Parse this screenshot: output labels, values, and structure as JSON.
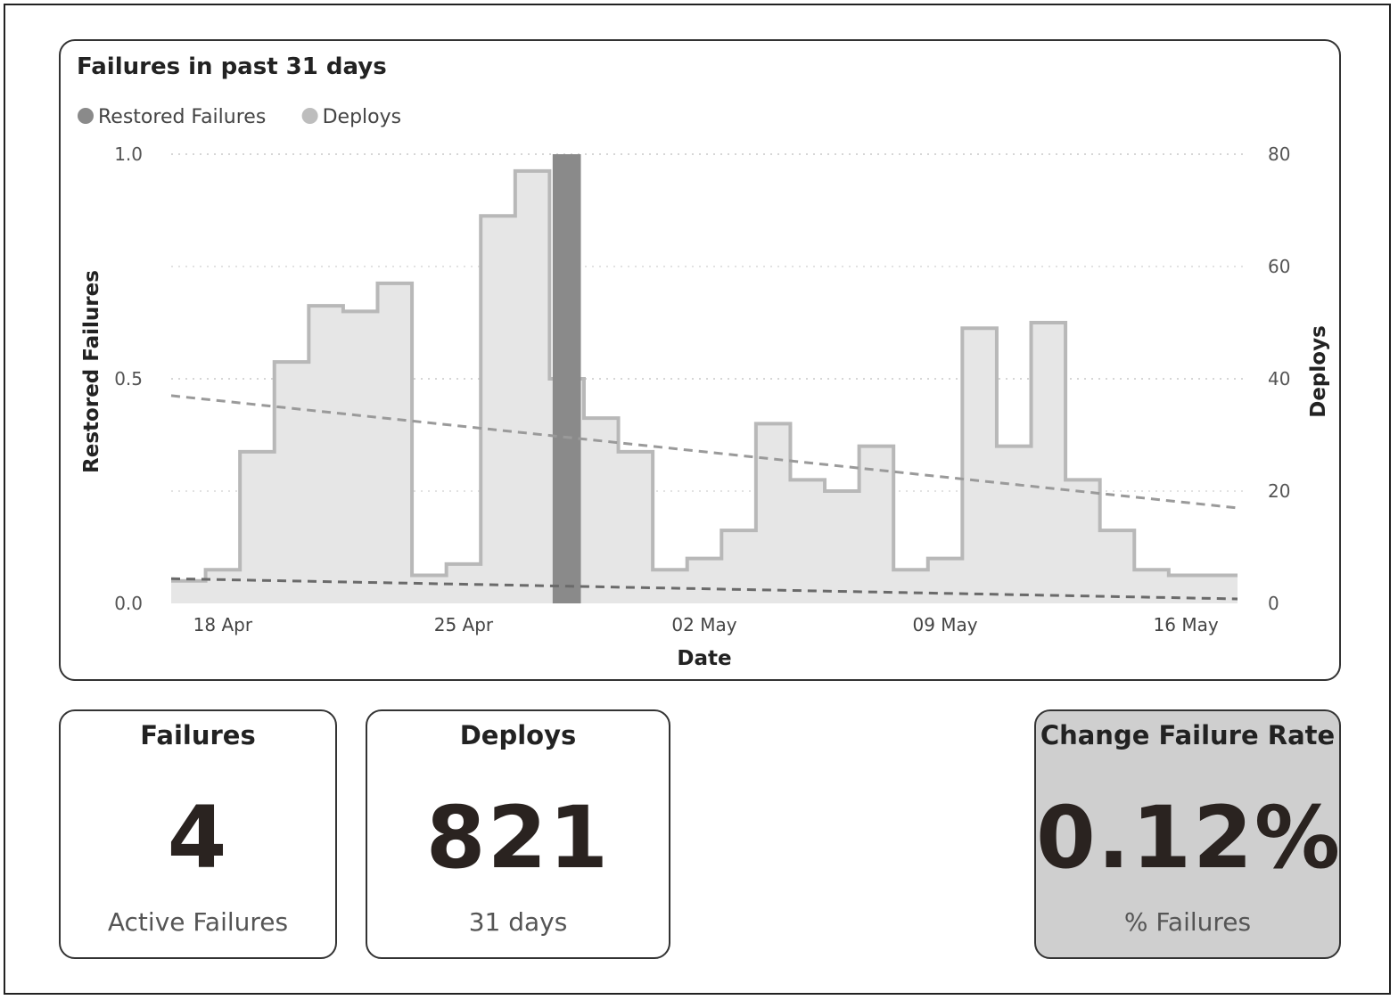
{
  "chart_data": {
    "type": "bar",
    "title": "Failures in past 31 days",
    "legend": [
      {
        "name": "Restored Failures",
        "color": "#8a8a8a"
      },
      {
        "name": "Deploys",
        "color": "#bdbdbd"
      }
    ],
    "legend_position": "top-left",
    "xlabel": "Date",
    "ylabel_left": "Restored Failures",
    "ylabel_right": "Deploys",
    "x_ticks": [
      "18 Apr",
      "25 Apr",
      "02 May",
      "09 May",
      "16 May"
    ],
    "y_left_ticks": [
      "0.0",
      "0.5",
      "1.0"
    ],
    "y_right_ticks": [
      "0",
      "20",
      "40",
      "60",
      "80"
    ],
    "y_left_range": [
      0,
      1
    ],
    "y_right_range": [
      0,
      80
    ],
    "grid": "dotted-horizontal",
    "dates": [
      "17 Apr",
      "18 Apr",
      "19 Apr",
      "20 Apr",
      "21 Apr",
      "22 Apr",
      "23 Apr",
      "24 Apr",
      "25 Apr",
      "26 Apr",
      "27 Apr",
      "28 Apr",
      "29 Apr",
      "30 Apr",
      "01 May",
      "02 May",
      "03 May",
      "04 May",
      "05 May",
      "06 May",
      "07 May",
      "08 May",
      "09 May",
      "10 May",
      "11 May",
      "12 May",
      "13 May",
      "14 May",
      "15 May",
      "16 May",
      "17 May"
    ],
    "series": [
      {
        "name": "Deploys",
        "type": "step-area",
        "axis": "right",
        "values": [
          4,
          6,
          27,
          43,
          53,
          52,
          57,
          5,
          7,
          69,
          77,
          40,
          33,
          27,
          6,
          8,
          13,
          32,
          22,
          20,
          28,
          6,
          8,
          49,
          28,
          50,
          22,
          13,
          6,
          5,
          5
        ]
      },
      {
        "name": "Restored Failures",
        "type": "bar",
        "axis": "left",
        "values": [
          0,
          0,
          0,
          0,
          0,
          0,
          0,
          0,
          0,
          0,
          0,
          1,
          0,
          0,
          0,
          0,
          0,
          0,
          0,
          0,
          0,
          0,
          0,
          0,
          0,
          0,
          0,
          0,
          0,
          0,
          0
        ]
      }
    ],
    "trendlines": [
      {
        "series": "Deploys",
        "axis": "right",
        "start": 37,
        "end": 17
      },
      {
        "series": "Restored Failures",
        "axis": "left",
        "start": 0.055,
        "end": 0.01
      }
    ]
  },
  "kpis": {
    "failures": {
      "title": "Failures",
      "value": "4",
      "sub": "Active Failures"
    },
    "deploys": {
      "title": "Deploys",
      "value": "821",
      "sub": "31 days"
    },
    "cfr": {
      "title": "Change Failure Rate",
      "value": "0.12%",
      "sub": "% Failures"
    }
  }
}
